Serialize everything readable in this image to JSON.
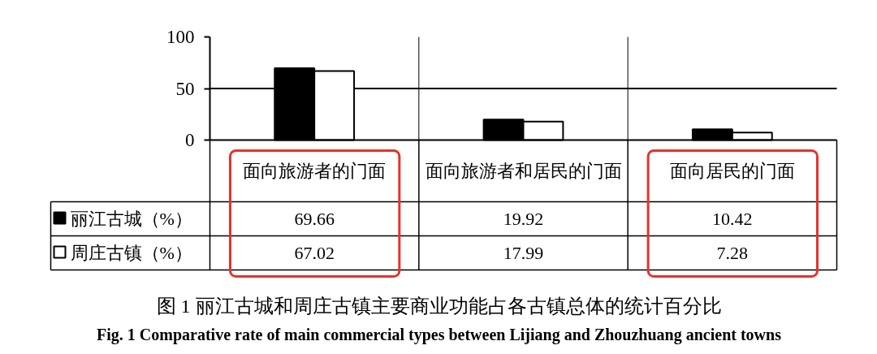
{
  "chart_data": {
    "type": "bar",
    "title": "图 1 丽江古城和周庄古镇主要商业功能占各古镇总体的统计百分比",
    "subtitle": "Fig. 1 Comparative rate of main commercial types between Lijiang and Zhouzhuang ancient towns",
    "categories": [
      "面向旅游者的门面",
      "面向旅游者和居民的门面",
      "面向居民的门面"
    ],
    "series": [
      {
        "name": "丽江古城（%）",
        "color": "#000000",
        "values": [
          69.66,
          19.92,
          10.42
        ]
      },
      {
        "name": "周庄古镇（%）",
        "color": "#ffffff",
        "values": [
          67.02,
          17.99,
          7.28
        ]
      }
    ],
    "ylim": [
      0,
      100
    ],
    "yticks": [
      0,
      50,
      100
    ],
    "grid": "x",
    "ref_lines": [
      {
        "axis": "y",
        "value": 50,
        "color": "#000000"
      }
    ],
    "legend": "bottom left",
    "data_labels": true
  }
}
